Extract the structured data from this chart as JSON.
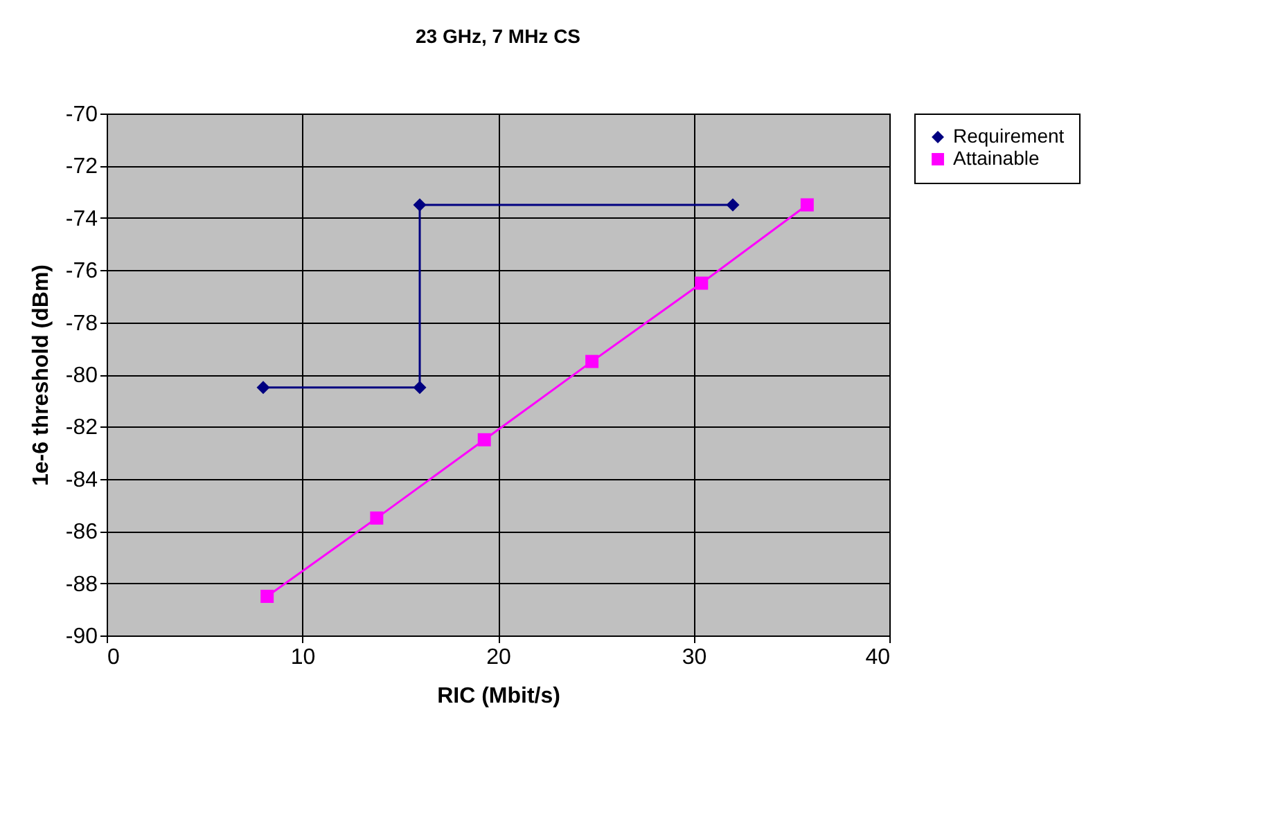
{
  "chart_data": {
    "type": "line",
    "title": "23 GHz, 7 MHz CS",
    "xlabel": "RIC (Mbit/s)",
    "ylabel": "1e-6 threshold (dBm)",
    "series": [
      {
        "name": "Requirement",
        "color": "#000080",
        "marker": "diamond",
        "x": [
          8,
          16,
          16,
          32
        ],
        "values": [
          -80.5,
          -80.5,
          -73.5,
          -73.5
        ]
      },
      {
        "name": "Attainable",
        "color": "#ff00ff",
        "marker": "square",
        "x": [
          8.2,
          13.8,
          19.3,
          24.8,
          30.4,
          35.8
        ],
        "values": [
          -88.5,
          -85.5,
          -82.5,
          -79.5,
          -76.5,
          -73.5
        ]
      }
    ],
    "xlim": [
      0,
      40
    ],
    "xticks": [
      0,
      10,
      20,
      30,
      40
    ],
    "ylim": [
      -90,
      -70
    ],
    "yticks": [
      -90,
      -88,
      -86,
      -84,
      -82,
      -80,
      -78,
      -76,
      -74,
      -72,
      -70
    ],
    "grid": true,
    "legend": "right",
    "line_style": "solid"
  }
}
